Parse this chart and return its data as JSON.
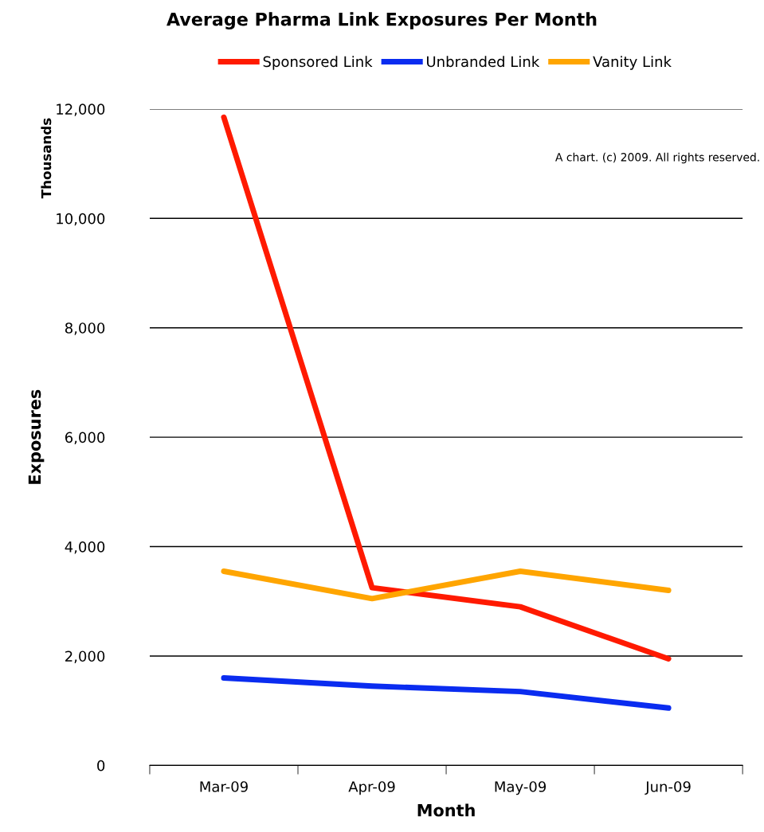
{
  "chart_data": {
    "type": "line",
    "title": "Average Pharma Link Exposures Per Month",
    "xlabel": "Month",
    "ylabel": "Exposures",
    "annotations": [
      "Thousands",
      "A chart. (c) 2009. All rights reserved."
    ],
    "categories": [
      "Mar-09",
      "Apr-09",
      "May-09",
      "Jun-09"
    ],
    "series": [
      {
        "name": "Sponsored Link",
        "color": "#ff1a00",
        "values": [
          11850,
          3250,
          2900,
          1950
        ]
      },
      {
        "name": "Unbranded Link",
        "color": "#0a2cf0",
        "values": [
          1600,
          1450,
          1350,
          1050
        ]
      },
      {
        "name": "Vanity Link",
        "color": "#ffa500",
        "values": [
          3550,
          3050,
          3550,
          3200
        ]
      }
    ],
    "ylim": [
      0,
      12000
    ],
    "yticks": [
      {
        "value": 0,
        "label": "0"
      },
      {
        "value": 2000,
        "label": "2,000"
      },
      {
        "value": 4000,
        "label": "4,000"
      },
      {
        "value": 6000,
        "label": "6,000"
      },
      {
        "value": 8000,
        "label": "8,000"
      },
      {
        "value": 10000,
        "label": "10,000"
      },
      {
        "value": 12000,
        "label": "12,000"
      }
    ],
    "grid": "y",
    "legend": "top",
    "marker": "none",
    "line_style": "solid"
  }
}
